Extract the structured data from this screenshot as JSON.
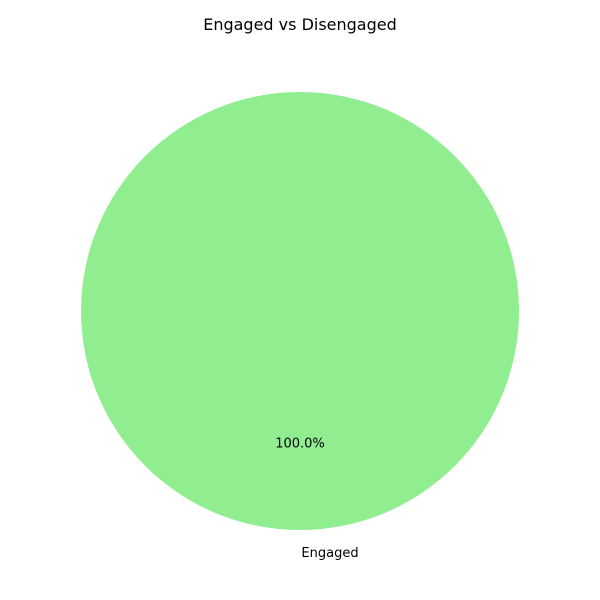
{
  "chart_data": {
    "type": "pie",
    "title": "Engaged vs Disengaged",
    "labels": [
      "Engaged"
    ],
    "values": [
      100.0
    ],
    "percent_labels": [
      "100.0%"
    ],
    "colors": [
      "#90ee90"
    ],
    "legend": "none"
  }
}
